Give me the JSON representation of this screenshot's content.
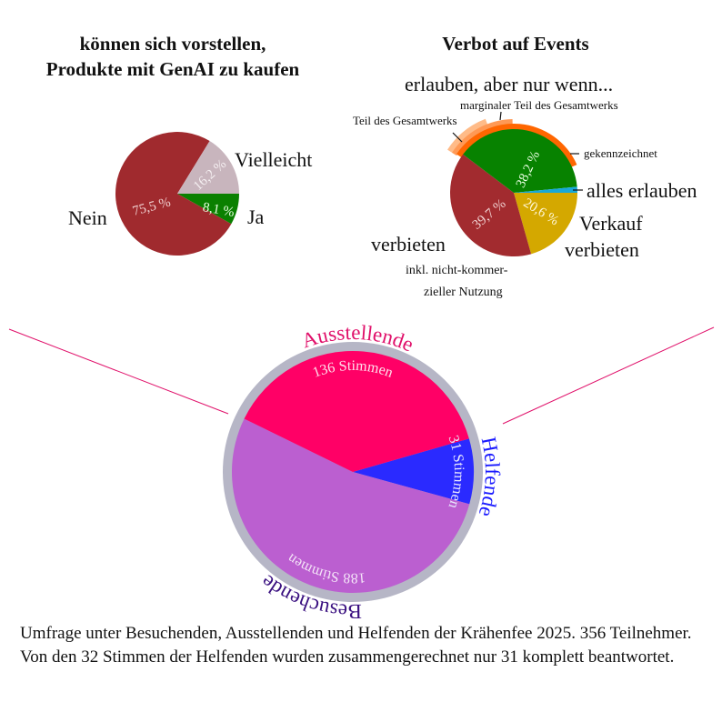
{
  "chart_data": [
    {
      "type": "pie",
      "title": "können sich vorstellen, Produkte mit GenAI zu kaufen",
      "title_lines": [
        "können sich vorstellen,",
        "Produkte mit GenAI zu kaufen"
      ],
      "slices": [
        {
          "label": "Ja",
          "value": 8.1,
          "value_label": "8,1 %",
          "color": "#0a8000"
        },
        {
          "label": "Nein",
          "value": 75.5,
          "value_label": "75,5 %",
          "color": "#a02a2e"
        },
        {
          "label": "Vielleicht",
          "value": 16.2,
          "value_label": "16,2 %",
          "color": "#c8b5bd"
        }
      ]
    },
    {
      "type": "pie",
      "title": "Verbot auf Events",
      "slices": [
        {
          "label": "Verkauf verbieten",
          "label_lines": [
            "Verkauf",
            "verbieten"
          ],
          "value": 20.6,
          "value_label": "20,6 %",
          "color": "#d4a800"
        },
        {
          "label": "verbieten",
          "sublabel_lines": [
            "inkl. nicht-kommer-",
            "zieller Nutzung"
          ],
          "value": 39.7,
          "value_label": "39,7 %",
          "color": "#a22b2f"
        },
        {
          "label": "erlauben, aber nur wenn...",
          "value": 38.2,
          "value_label": "38,2 %",
          "color": "#078200"
        },
        {
          "label": "alles erlauben",
          "value": 1.5,
          "color": "#18a8d8"
        }
      ],
      "sub_arcs": [
        {
          "label": "gekennzeichnet",
          "color": "#ff6600"
        },
        {
          "label": "marginaler Teil des Gesamtwerks",
          "color": "#ff9955"
        },
        {
          "label": "Teil des Gesamtwerks",
          "color": "#ffbb88"
        }
      ]
    },
    {
      "type": "pie",
      "title": "",
      "slices": [
        {
          "label": "Helfende",
          "value": 31,
          "value_label": "31 Stimmen",
          "color": "#2a2aff",
          "label_color": "#1a1aff"
        },
        {
          "label": "Besuchende",
          "value": 188,
          "value_label": "188 Stimmen",
          "color": "#bb5fd0",
          "label_color": "#3a1080"
        },
        {
          "label": "Ausstellende",
          "value": 136,
          "value_label": "136 Stimmen",
          "color": "#ff0066",
          "label_color": "#e0106a"
        }
      ],
      "ring_color": "#b6b6c6",
      "connector_color": "#e0106a"
    }
  ],
  "caption": "Umfrage unter Besuchenden, Ausstellenden und Helfenden der Krähenfee 2025. 356 Teilnehmer. Von den 32 Stimmen der Helfenden wurden zusammengerechnet nur 31 komplett beantwortet."
}
